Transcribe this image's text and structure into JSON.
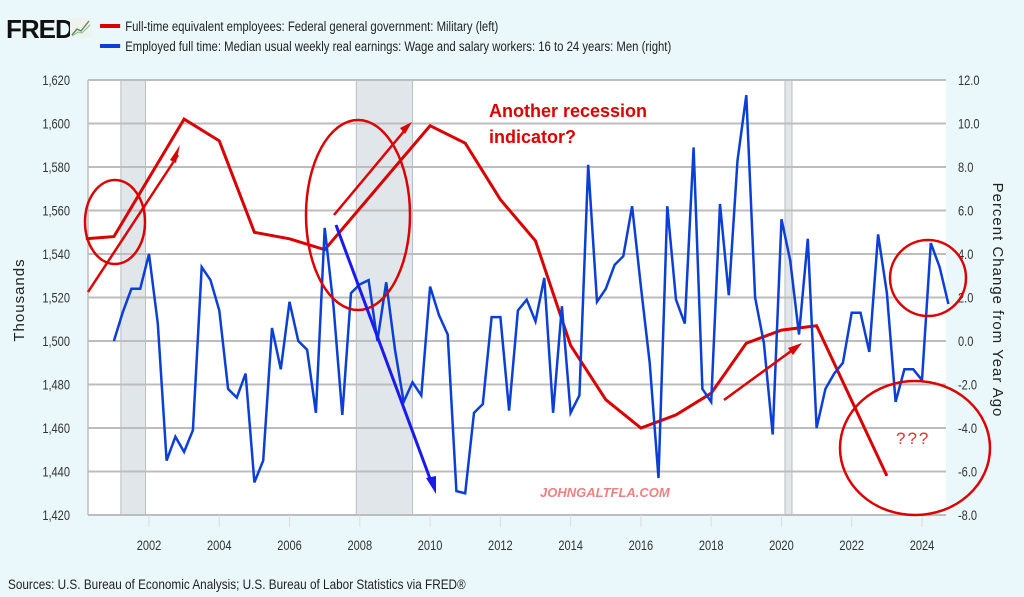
{
  "header": {
    "logo_text": "FRED",
    "logo_icon": "chart-trend-icon",
    "legend": [
      {
        "label": "Full-time equivalent employees: Federal general government: Military (left)",
        "color": "#d90000"
      },
      {
        "label": "Employed full time: Median usual weekly real earnings: Wage and salary workers: 16 to 24 years: Men (right)",
        "color": "#0b3fd6"
      }
    ]
  },
  "footer": {
    "source": "Sources: U.S. Bureau of Economic Analysis; U.S. Bureau of Labor Statistics via FRED®"
  },
  "chart_data": {
    "type": "line",
    "title": "",
    "xlabel": "",
    "ylabel_left": "Thousands",
    "ylabel_right": "Percent Change from Year Ago",
    "xlim": [
      2000.2,
      2024.8
    ],
    "ylim_left": [
      1420,
      1620
    ],
    "ylim_right": [
      -8.0,
      12.0
    ],
    "x_ticks": [
      "2002",
      "2004",
      "2006",
      "2008",
      "2010",
      "2012",
      "2014",
      "2016",
      "2018",
      "2020",
      "2022",
      "2024"
    ],
    "y_ticks_left": [
      "1,620",
      "1,600",
      "1,580",
      "1,560",
      "1,540",
      "1,520",
      "1,500",
      "1,480",
      "1,460",
      "1,440",
      "1,420"
    ],
    "y_ticks_right": [
      "12.0",
      "10.0",
      "8.0",
      "6.0",
      "4.0",
      "2.0",
      "0.0",
      "-2.0",
      "-4.0",
      "-6.0",
      "-8.0"
    ],
    "grid": true,
    "legend_position": "top",
    "recessions": [
      [
        2001.2,
        2001.9
      ],
      [
        2007.9,
        2009.5
      ],
      [
        2020.1,
        2020.3
      ]
    ],
    "series": [
      {
        "name": "Full-time equivalent employees: Federal general government: Military (left)",
        "axis": "left",
        "color": "#d90000",
        "x": [
          2000.2,
          2001.0,
          2003.0,
          2004.0,
          2005.0,
          2006.0,
          2007.0,
          2010.0,
          2011.0,
          2012.0,
          2013.0,
          2014.0,
          2015.0,
          2016.0,
          2017.0,
          2018.0,
          2019.0,
          2020.0,
          2021.0,
          2023.0
        ],
        "values": [
          1547,
          1548,
          1602,
          1592,
          1550,
          1547,
          1542,
          1599,
          1591,
          1565,
          1546,
          1498,
          1473,
          1460,
          1466,
          1476,
          1499,
          1505,
          1507,
          1438
        ]
      },
      {
        "name": "Employed full time: Median usual weekly real earnings: Wage and salary workers: 16 to 24 years: Men (right)",
        "axis": "right",
        "color": "#0b3fd6",
        "x": [
          2001.0,
          2001.25,
          2001.5,
          2001.75,
          2002.0,
          2002.25,
          2002.5,
          2002.75,
          2003.0,
          2003.25,
          2003.5,
          2003.75,
          2004.0,
          2004.25,
          2004.5,
          2004.75,
          2005.0,
          2005.25,
          2005.5,
          2005.75,
          2006.0,
          2006.25,
          2006.5,
          2006.75,
          2007.0,
          2007.25,
          2007.5,
          2007.75,
          2008.0,
          2008.25,
          2008.5,
          2008.75,
          2009.0,
          2009.25,
          2009.5,
          2009.75,
          2010.0,
          2010.25,
          2010.5,
          2010.75,
          2011.0,
          2011.25,
          2011.5,
          2011.75,
          2012.0,
          2012.25,
          2012.5,
          2012.75,
          2013.0,
          2013.25,
          2013.5,
          2013.75,
          2014.0,
          2014.25,
          2014.5,
          2014.75,
          2015.0,
          2015.25,
          2015.5,
          2015.75,
          2016.0,
          2016.25,
          2016.5,
          2016.75,
          2017.0,
          2017.25,
          2017.5,
          2017.75,
          2018.0,
          2018.25,
          2018.5,
          2018.75,
          2019.0,
          2019.25,
          2019.5,
          2019.75,
          2020.0,
          2020.25,
          2020.5,
          2020.75,
          2021.0,
          2021.25,
          2021.5,
          2021.75,
          2022.0,
          2022.25,
          2022.5,
          2022.75,
          2023.0,
          2023.25,
          2023.5,
          2023.75,
          2024.0,
          2024.25,
          2024.5,
          2024.75
        ],
        "values": [
          0.0,
          1.3,
          2.4,
          2.4,
          4.0,
          0.8,
          -5.5,
          -4.4,
          -5.1,
          -4.1,
          3.4,
          2.8,
          1.4,
          -2.2,
          -2.6,
          -1.5,
          -6.5,
          -5.5,
          0.6,
          -1.3,
          1.8,
          0.0,
          -0.4,
          -3.3,
          5.2,
          1.6,
          -3.4,
          2.2,
          2.6,
          2.8,
          0.0,
          2.7,
          -0.4,
          -2.8,
          -1.9,
          -2.5,
          2.5,
          1.2,
          0.3,
          -6.9,
          -7.0,
          -3.3,
          -2.9,
          1.1,
          1.1,
          -3.2,
          1.4,
          1.9,
          0.9,
          2.9,
          -3.3,
          1.6,
          -3.3,
          -2.5,
          8.1,
          1.8,
          2.4,
          3.5,
          3.9,
          6.2,
          2.5,
          -1.0,
          -6.3,
          6.2,
          1.9,
          0.8,
          8.9,
          -2.2,
          -2.8,
          6.3,
          2.1,
          8.3,
          11.3,
          2.0,
          -0.1,
          -4.3,
          5.6,
          3.7,
          0.3,
          4.7,
          -4.0,
          -2.2,
          -1.5,
          -1.0,
          1.3,
          1.3,
          -0.5,
          4.9,
          2.2,
          -2.8,
          -1.3,
          -1.3,
          -1.8,
          4.5,
          3.4,
          1.7
        ]
      }
    ],
    "annotations": [
      {
        "text": "Another recession\nindicator?",
        "color": "#d90000",
        "position": "top-center"
      },
      {
        "text": "???",
        "color": "#d90000",
        "position": "bottom-right"
      },
      {
        "text": "JOHNGALTFLA.COM",
        "color": "#f08080",
        "position": "bottom-center"
      }
    ]
  }
}
